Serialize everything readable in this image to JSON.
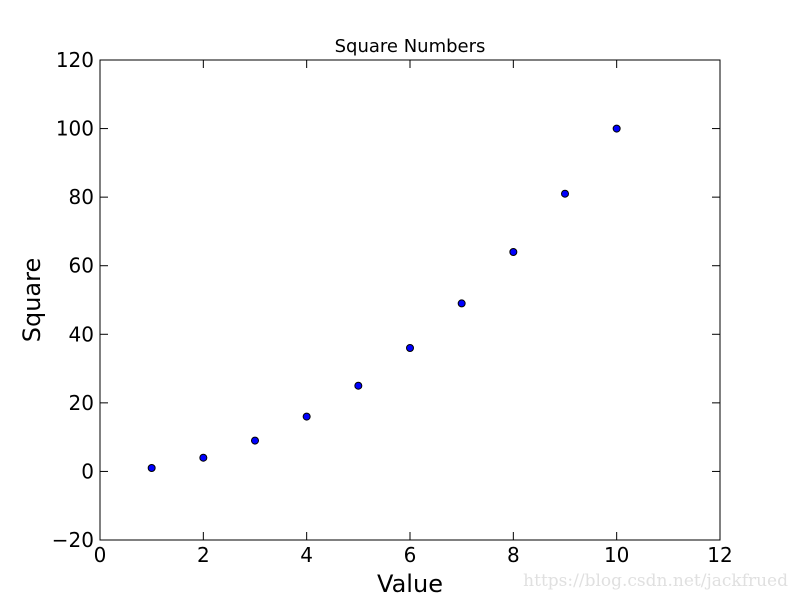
{
  "chart_data": {
    "type": "scatter",
    "title": "Square Numbers",
    "xlabel": "Value",
    "ylabel": "Square",
    "xlim": [
      0,
      12
    ],
    "ylim": [
      -20,
      120
    ],
    "xticks": [
      0,
      2,
      4,
      6,
      8,
      10,
      12
    ],
    "yticks": [
      -20,
      0,
      20,
      40,
      60,
      80,
      100,
      120
    ],
    "xtick_labels": [
      "0",
      "2",
      "4",
      "6",
      "8",
      "10",
      "12"
    ],
    "ytick_labels": [
      "−20",
      "0",
      "20",
      "40",
      "60",
      "80",
      "100",
      "120"
    ],
    "grid": false,
    "legend": "none",
    "series": [
      {
        "x": [
          1,
          2,
          3,
          4,
          5,
          6,
          7,
          8,
          9,
          10
        ],
        "y": [
          1,
          4,
          9,
          16,
          25,
          36,
          49,
          64,
          81,
          100
        ],
        "color": "#0000ff",
        "edgecolor": "#000000"
      }
    ]
  },
  "watermark": "https://blog.csdn.net/jackfrued"
}
